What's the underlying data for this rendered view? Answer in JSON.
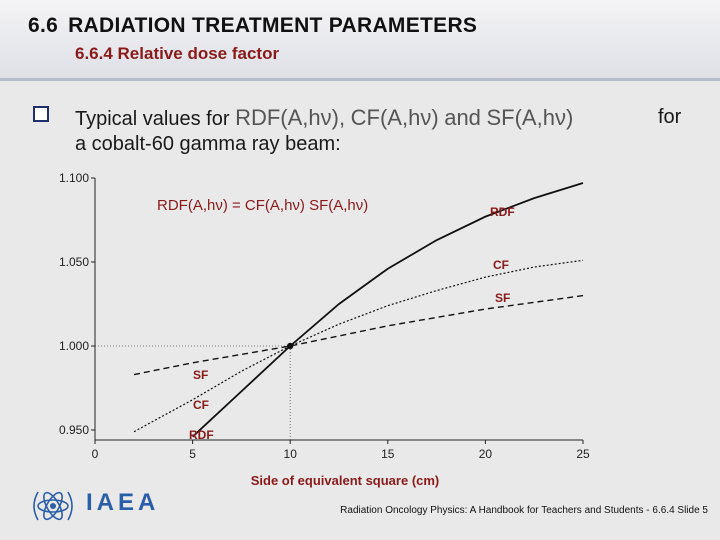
{
  "header": {
    "section_number": "6.6",
    "title": "RADIATION TREATMENT PARAMETERS",
    "subtitle": "6.6.4 Relative dose factor"
  },
  "body": {
    "line1_prefix": "Typical values for",
    "formula_rdf": "RDF(A,hν),",
    "formula_cf": "CF(A,hν)",
    "and_word": "and",
    "formula_sf": "SF(A,hν)",
    "for_word": "for",
    "line2": "a cobalt-60 gamma ray beam:"
  },
  "chart_data": {
    "type": "line",
    "equation": "RDF(A,hν) = CF(A,hν) SF(A,hν)",
    "xlabel": "Side of equivalent square  (cm)",
    "ylabel": "",
    "xlim": [
      0,
      25
    ],
    "ylim": [
      0.94,
      1.1
    ],
    "xticks": [
      "0",
      "5",
      "10",
      "15",
      "20",
      "25"
    ],
    "yticks": [
      "1.100",
      "1.050",
      "1.000",
      "0.950"
    ],
    "reference": {
      "x": 10,
      "y": 1.0
    },
    "series": [
      {
        "name": "RDF",
        "style": "solid",
        "x": [
          5,
          7.5,
          10,
          12.5,
          15,
          17.5,
          20,
          22.5,
          25
        ],
        "y": [
          0.946,
          0.973,
          1.0,
          1.025,
          1.046,
          1.063,
          1.077,
          1.088,
          1.097
        ]
      },
      {
        "name": "CF",
        "style": "dotted",
        "x": [
          2,
          5,
          7.5,
          10,
          12.5,
          15,
          17.5,
          20,
          22.5,
          25
        ],
        "y": [
          0.949,
          0.968,
          0.985,
          1.0,
          1.013,
          1.024,
          1.033,
          1.041,
          1.047,
          1.051
        ]
      },
      {
        "name": "SF",
        "style": "dashed",
        "x": [
          2,
          5,
          7.5,
          10,
          12.5,
          15,
          17.5,
          20,
          22.5,
          25
        ],
        "y": [
          0.983,
          0.99,
          0.995,
          1.0,
          1.006,
          1.012,
          1.017,
          1.022,
          1.026,
          1.03
        ]
      }
    ]
  },
  "logo": {
    "text": "IAEA"
  },
  "footer": {
    "text": "Radiation Oncology Physics: A Handbook for Teachers and Students - 6.6.4 Slide 5"
  }
}
